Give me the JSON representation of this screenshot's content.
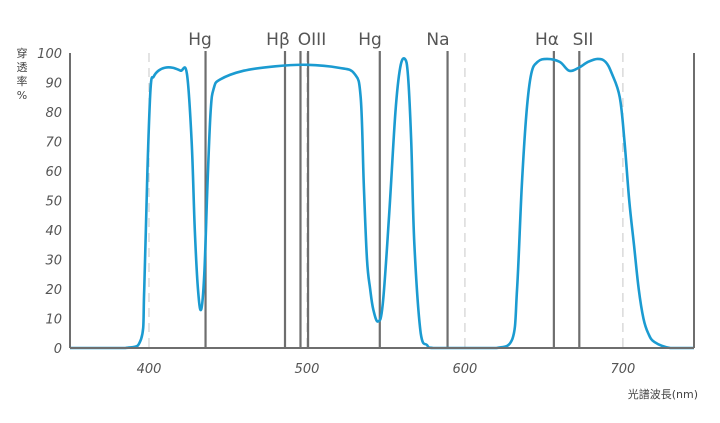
{
  "chart_data": {
    "type": "line",
    "ylabel": "穿透率%",
    "xlabel": "光譜波長(nm)",
    "xlim": [
      350,
      745
    ],
    "ylim": [
      0,
      100
    ],
    "xticks": [
      400,
      500,
      600,
      700
    ],
    "yticks": [
      0,
      10,
      20,
      30,
      40,
      50,
      60,
      70,
      80,
      90,
      100
    ],
    "grid": "vertical-dashed",
    "series_color": "#1b9bd1",
    "series": [
      {
        "x": [
          350,
          385,
          395,
          397,
          399,
          401,
          403,
          406,
          410,
          415,
          420,
          424,
          427,
          429,
          431,
          433,
          435,
          437,
          439,
          441,
          445,
          460,
          480,
          500,
          520,
          530,
          534,
          536,
          538,
          540,
          542,
          545,
          548,
          552,
          556,
          559,
          562,
          564,
          566,
          568,
          572,
          576,
          580,
          600,
          620,
          630,
          633,
          636,
          639,
          642,
          646,
          652,
          660,
          666,
          672,
          678,
          684,
          689,
          693,
          698,
          701,
          704,
          707,
          710,
          713,
          716,
          720,
          730,
          745
        ],
        "y": [
          0,
          0,
          3,
          20,
          60,
          88,
          92,
          94,
          95,
          95,
          94,
          93,
          70,
          40,
          20,
          13,
          25,
          55,
          80,
          88,
          91,
          94,
          95.5,
          96,
          95,
          93,
          85,
          55,
          30,
          20,
          13,
          9,
          15,
          45,
          80,
          95,
          98,
          92,
          70,
          35,
          5,
          1,
          0,
          0,
          0,
          3,
          20,
          55,
          80,
          93,
          97,
          98,
          97,
          94,
          95,
          97,
          98,
          97,
          93,
          85,
          70,
          50,
          35,
          20,
          10,
          5,
          2,
          0,
          0
        ]
      }
    ],
    "reference_lines": [
      {
        "label": "Hg",
        "x": 435.8
      },
      {
        "label": "Hβ",
        "x": 486.1
      },
      {
        "label": "OIII",
        "x": 495.9
      },
      {
        "label": "",
        "x": 500.7
      },
      {
        "label": "Hg",
        "x": 546.1
      },
      {
        "label": "Na",
        "x": 589.0
      },
      {
        "label": "Hα",
        "x": 656.3
      },
      {
        "label": "SII",
        "x": 672.4
      }
    ]
  }
}
